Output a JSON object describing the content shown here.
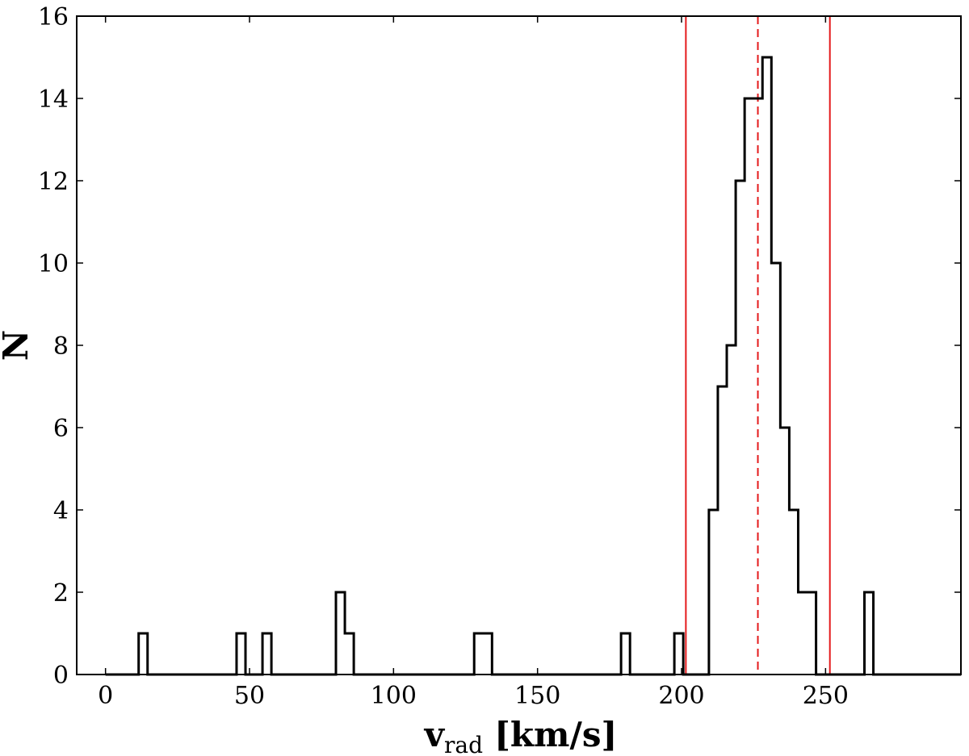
{
  "chart_data": {
    "type": "histogram",
    "xlabel": {
      "main": "v",
      "sub": "rad",
      "unit": "[km/s]"
    },
    "ylabel": "N",
    "xlim": [
      -10,
      297
    ],
    "ylim": [
      0,
      16
    ],
    "xticks": [
      0,
      50,
      100,
      150,
      200,
      250
    ],
    "yticks": [
      0,
      2,
      4,
      6,
      8,
      10,
      12,
      14,
      16
    ],
    "bin_width": 3.1,
    "bins": [
      {
        "x0": 11.5,
        "count": 1
      },
      {
        "x0": 45.5,
        "count": 1
      },
      {
        "x0": 54.5,
        "count": 1
      },
      {
        "x0": 80.0,
        "count": 2
      },
      {
        "x0": 83.1,
        "count": 1
      },
      {
        "x0": 128.0,
        "count": 1
      },
      {
        "x0": 131.1,
        "count": 1
      },
      {
        "x0": 179.0,
        "count": 1
      },
      {
        "x0": 197.5,
        "count": 1
      },
      {
        "x0": 209.5,
        "count": 4
      },
      {
        "x0": 212.6,
        "count": 7
      },
      {
        "x0": 215.7,
        "count": 8
      },
      {
        "x0": 218.8,
        "count": 12
      },
      {
        "x0": 221.9,
        "count": 14
      },
      {
        "x0": 225.0,
        "count": 14
      },
      {
        "x0": 228.1,
        "count": 15
      },
      {
        "x0": 231.2,
        "count": 10
      },
      {
        "x0": 234.3,
        "count": 6
      },
      {
        "x0": 237.4,
        "count": 4
      },
      {
        "x0": 240.5,
        "count": 2
      },
      {
        "x0": 243.6,
        "count": 2
      },
      {
        "x0": 263.5,
        "count": 2
      }
    ],
    "vlines": [
      {
        "x": 201.5,
        "style": "solid",
        "color": "#e41a1c"
      },
      {
        "x": 226.5,
        "style": "dashed",
        "color": "#e41a1c"
      },
      {
        "x": 251.5,
        "style": "solid",
        "color": "#e41a1c"
      }
    ],
    "line_color": "#000000",
    "grid": false,
    "legend": "none"
  }
}
